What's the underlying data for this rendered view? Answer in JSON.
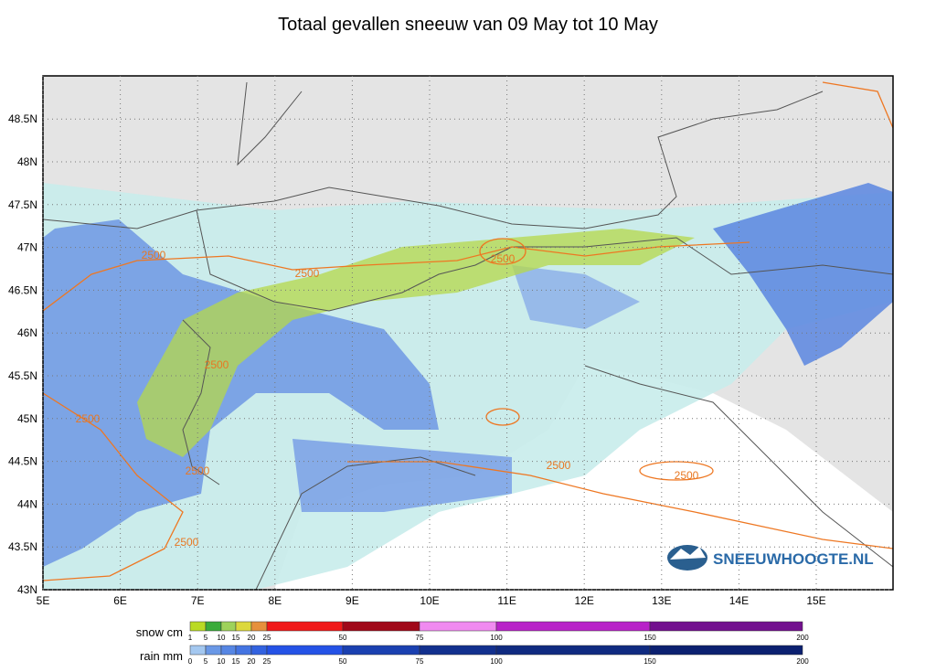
{
  "title": "Totaal gevallen sneeuw van 09 May tot 10 May",
  "map": {
    "lon_ticks": [
      {
        "value": 5,
        "label": "5E"
      },
      {
        "value": 6,
        "label": "6E"
      },
      {
        "value": 7,
        "label": "7E"
      },
      {
        "value": 8,
        "label": "8E"
      },
      {
        "value": 9,
        "label": "9E"
      },
      {
        "value": 10,
        "label": "10E"
      },
      {
        "value": 11,
        "label": "11E"
      },
      {
        "value": 12,
        "label": "12E"
      },
      {
        "value": 13,
        "label": "13E"
      },
      {
        "value": 14,
        "label": "14E"
      },
      {
        "value": 15,
        "label": "15E"
      }
    ],
    "lat_ticks": [
      {
        "value": 43,
        "label": "43N"
      },
      {
        "value": 43.5,
        "label": "43.5N"
      },
      {
        "value": 44,
        "label": "44N"
      },
      {
        "value": 44.5,
        "label": "44.5N"
      },
      {
        "value": 45,
        "label": "45N"
      },
      {
        "value": 45.5,
        "label": "45.5N"
      },
      {
        "value": 46,
        "label": "46N"
      },
      {
        "value": 46.5,
        "label": "46.5N"
      },
      {
        "value": 47,
        "label": "47N"
      },
      {
        "value": 47.5,
        "label": "47.5N"
      },
      {
        "value": 48,
        "label": "48N"
      },
      {
        "value": 48.5,
        "label": "48.5N"
      }
    ],
    "contour_labels": [
      "2500",
      "2500",
      "2500",
      "2500",
      "2500",
      "2500",
      "2500",
      "2500",
      "2500"
    ],
    "logo": "SNEEUWHOOGTE.NL"
  },
  "legend": {
    "snow": {
      "label": "snow cm",
      "ticks": [
        "1",
        "5",
        "10",
        "15",
        "20",
        "25",
        "50",
        "75",
        "100",
        "150",
        "200"
      ],
      "colors": [
        "#bada24",
        "#3aab3a",
        "#9ed25a",
        "#dcd83c",
        "#e6903c",
        "#f01818",
        "#a00818",
        "#f08af0",
        "#b822c8",
        "#72108e"
      ]
    },
    "rain": {
      "label": "rain mm",
      "ticks": [
        "0",
        "5",
        "10",
        "15",
        "20",
        "25",
        "50",
        "75",
        "100",
        "150",
        "200"
      ],
      "colors": [
        "#a4c8f0",
        "#6a98e6",
        "#5686e4",
        "#4474e2",
        "#3262e0",
        "#2452e6",
        "#1a40b0",
        "#12308e",
        "#0f2a80",
        "#0b2070"
      ]
    }
  }
}
